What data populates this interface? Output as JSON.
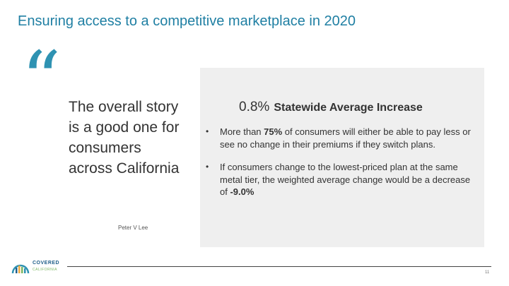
{
  "slide": {
    "title": "Ensuring access to a competitive marketplace in 2020",
    "quote": {
      "mark": "“",
      "text": "The overall story is a good one for consumers across California",
      "author": "Peter V Lee"
    },
    "panel": {
      "stat_value": "0.8%",
      "stat_label": "Statewide Average Increase",
      "bullets": [
        {
          "pre": "More than ",
          "bold": "75%",
          "post": " of consumers will either be able to pay less or see no change in their premiums if they switch plans."
        },
        {
          "pre": "If consumers change to the lowest-priced plan at the same metal tier, the weighted average change would be a decrease of ",
          "bold": "-9.0%",
          "post": ""
        }
      ]
    },
    "logo": {
      "line1": "COVERED",
      "line2": "CALIFORNIA",
      "colors": [
        "#1f5f8a",
        "#f2a93b",
        "#7bb662",
        "#2e92b2"
      ]
    },
    "page_number": "11"
  }
}
